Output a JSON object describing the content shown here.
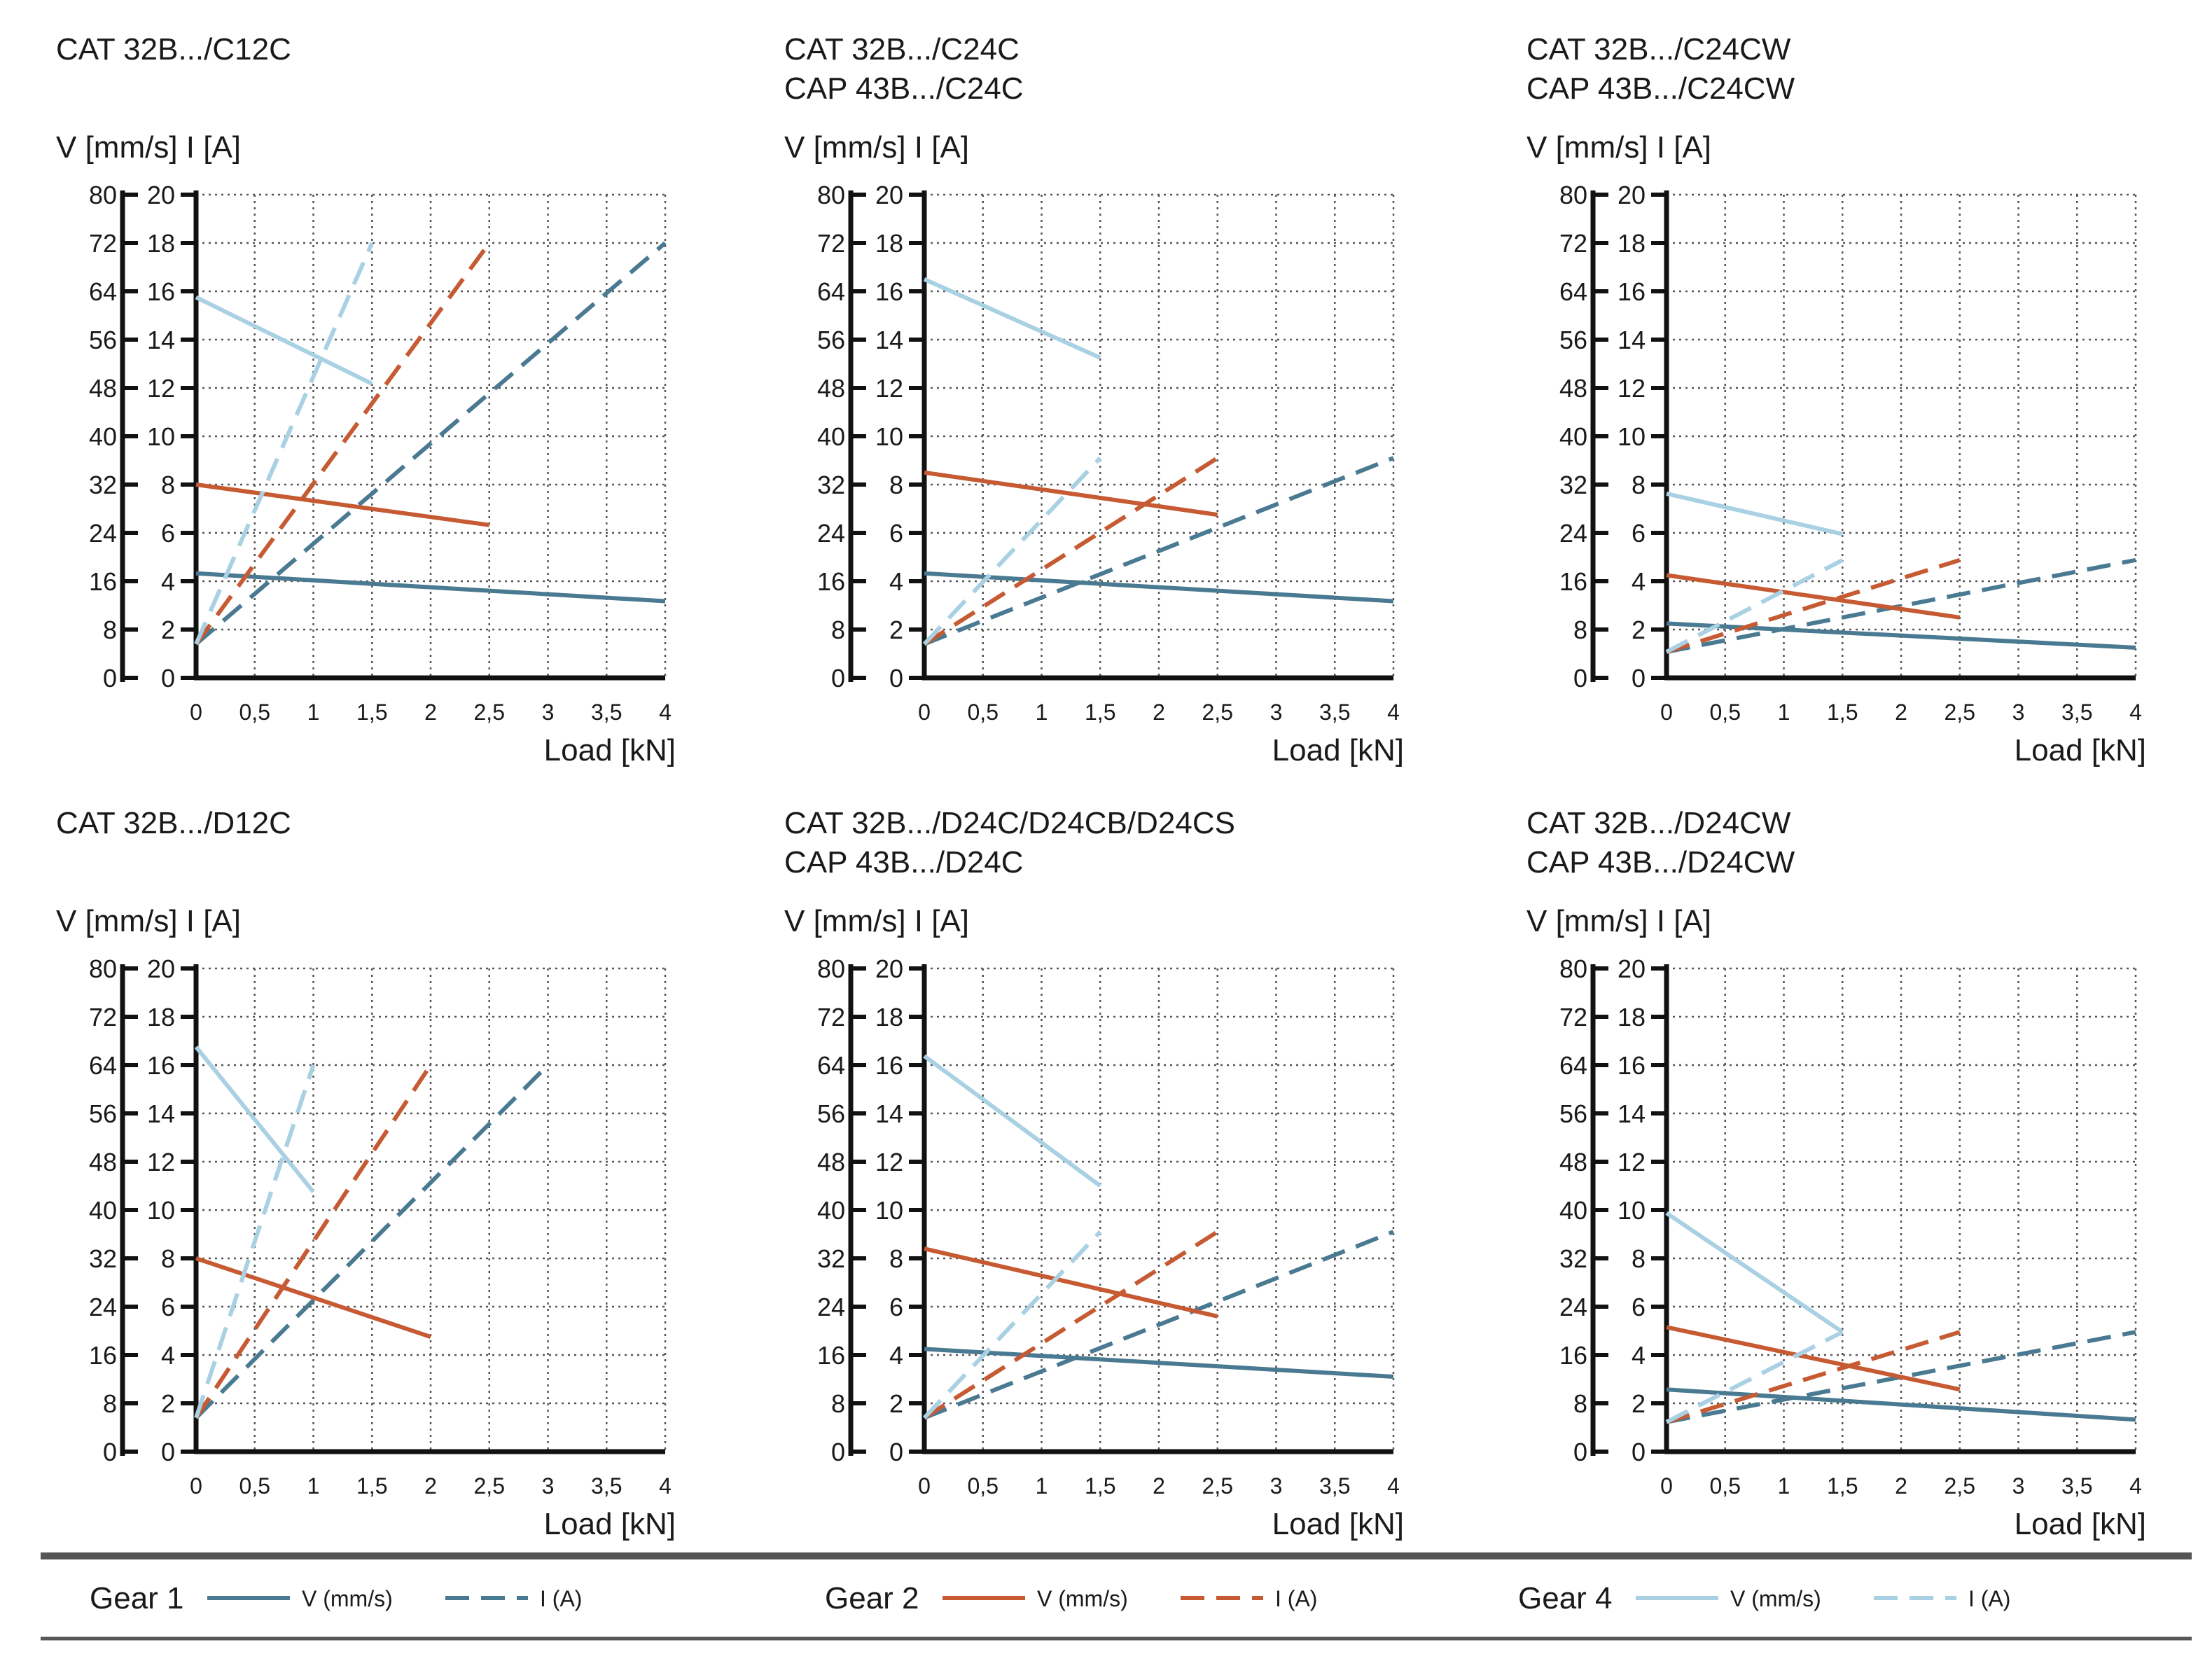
{
  "colors": {
    "gear1": "#4a7a92",
    "gear2": "#c65a33",
    "gear4": "#a9d1e3",
    "axis": "#111111",
    "grid": "#555555",
    "rule": "#555555"
  },
  "chart_data": [
    {
      "type": "line",
      "title_lines": [
        "CAT 32B.../C12C"
      ],
      "ylabel": "V [mm/s]  I [A]",
      "xlabel": "Load [kN]",
      "xlim": [
        0,
        4
      ],
      "x_ticks": [
        "0",
        "0,5",
        "1",
        "1,5",
        "2",
        "2,5",
        "3",
        "3,5",
        "4"
      ],
      "v_axis": {
        "label": "V [mm/s]",
        "range": [
          0,
          80
        ],
        "ticks": [
          "0",
          "8",
          "16",
          "24",
          "32",
          "40",
          "48",
          "56",
          "64",
          "72",
          "80"
        ]
      },
      "i_axis": {
        "label": "I [A]",
        "range": [
          0,
          20
        ],
        "ticks": [
          "0",
          "2",
          "4",
          "6",
          "8",
          "10",
          "12",
          "14",
          "16",
          "18",
          "20"
        ]
      },
      "series": [
        {
          "name": "Gear 1 V (mm/s)",
          "gear": "gear1",
          "style": "solid",
          "x": [
            0,
            4
          ],
          "y": [
            17.3,
            12.7
          ]
        },
        {
          "name": "Gear 1 I (A)",
          "gear": "gear1",
          "style": "dashed",
          "x": [
            0,
            4
          ],
          "y": [
            5.6,
            72
          ]
        },
        {
          "name": "Gear 2 V (mm/s)",
          "gear": "gear2",
          "style": "solid",
          "x": [
            0,
            2.5
          ],
          "y": [
            32,
            25.3
          ]
        },
        {
          "name": "Gear 2 I (A)",
          "gear": "gear2",
          "style": "dashed",
          "x": [
            0,
            2.5
          ],
          "y": [
            5.6,
            72
          ]
        },
        {
          "name": "Gear 4 V (mm/s)",
          "gear": "gear4",
          "style": "solid",
          "x": [
            0,
            1.5
          ],
          "y": [
            63,
            48.7
          ]
        },
        {
          "name": "Gear 4 I (A)",
          "gear": "gear4",
          "style": "dashed",
          "x": [
            0,
            1.5
          ],
          "y": [
            5.6,
            72
          ]
        }
      ]
    },
    {
      "type": "line",
      "title_lines": [
        "CAT 32B.../C24C",
        "CAP 43B.../C24C"
      ],
      "ylabel": "V [mm/s]  I [A]",
      "xlabel": "Load [kN]",
      "xlim": [
        0,
        4
      ],
      "x_ticks": [
        "0",
        "0,5",
        "1",
        "1,5",
        "2",
        "2,5",
        "3",
        "3,5",
        "4"
      ],
      "v_axis": {
        "label": "V [mm/s]",
        "range": [
          0,
          80
        ],
        "ticks": [
          "0",
          "8",
          "16",
          "24",
          "32",
          "40",
          "48",
          "56",
          "64",
          "72",
          "80"
        ]
      },
      "i_axis": {
        "label": "I [A]",
        "range": [
          0,
          20
        ],
        "ticks": [
          "0",
          "2",
          "4",
          "6",
          "8",
          "10",
          "12",
          "14",
          "16",
          "18",
          "20"
        ]
      },
      "series": [
        {
          "name": "Gear 1 V (mm/s)",
          "gear": "gear1",
          "style": "solid",
          "x": [
            0,
            4
          ],
          "y": [
            17.3,
            12.7
          ]
        },
        {
          "name": "Gear 1 I (A)",
          "gear": "gear1",
          "style": "dashed",
          "x": [
            0,
            4
          ],
          "y": [
            5.6,
            36.4
          ]
        },
        {
          "name": "Gear 2 V (mm/s)",
          "gear": "gear2",
          "style": "solid",
          "x": [
            0,
            2.5
          ],
          "y": [
            34,
            27
          ]
        },
        {
          "name": "Gear 2 I (A)",
          "gear": "gear2",
          "style": "dashed",
          "x": [
            0,
            2.5
          ],
          "y": [
            5.6,
            36.4
          ]
        },
        {
          "name": "Gear 4 V (mm/s)",
          "gear": "gear4",
          "style": "solid",
          "x": [
            0,
            1.5
          ],
          "y": [
            66,
            53
          ]
        },
        {
          "name": "Gear 4 I (A)",
          "gear": "gear4",
          "style": "dashed",
          "x": [
            0,
            1.5
          ],
          "y": [
            5.6,
            36.4
          ]
        }
      ]
    },
    {
      "type": "line",
      "title_lines": [
        "CAT 32B.../C24CW",
        "CAP 43B.../C24CW"
      ],
      "ylabel": "V [mm/s]  I [A]",
      "xlabel": "Load [kN]",
      "xlim": [
        0,
        4
      ],
      "x_ticks": [
        "0",
        "0,5",
        "1",
        "1,5",
        "2",
        "2,5",
        "3",
        "3,5",
        "4"
      ],
      "v_axis": {
        "label": "V [mm/s]",
        "range": [
          0,
          80
        ],
        "ticks": [
          "0",
          "8",
          "16",
          "24",
          "32",
          "40",
          "48",
          "56",
          "64",
          "72",
          "80"
        ]
      },
      "i_axis": {
        "label": "I [A]",
        "range": [
          0,
          20
        ],
        "ticks": [
          "0",
          "2",
          "4",
          "6",
          "8",
          "10",
          "12",
          "14",
          "16",
          "18",
          "20"
        ]
      },
      "series": [
        {
          "name": "Gear 1 V (mm/s)",
          "gear": "gear1",
          "style": "solid",
          "x": [
            0,
            4
          ],
          "y": [
            9,
            5
          ]
        },
        {
          "name": "Gear 1 I (A)",
          "gear": "gear1",
          "style": "dashed",
          "x": [
            0,
            4
          ],
          "y": [
            4.3,
            19.5
          ]
        },
        {
          "name": "Gear 2 V (mm/s)",
          "gear": "gear2",
          "style": "solid",
          "x": [
            0,
            2.5
          ],
          "y": [
            17,
            10
          ]
        },
        {
          "name": "Gear 2 I (A)",
          "gear": "gear2",
          "style": "dashed",
          "x": [
            0,
            2.5
          ],
          "y": [
            4.3,
            19.5
          ]
        },
        {
          "name": "Gear 4 V (mm/s)",
          "gear": "gear4",
          "style": "solid",
          "x": [
            0,
            1.5
          ],
          "y": [
            30.5,
            23.8
          ]
        },
        {
          "name": "Gear 4 I (A)",
          "gear": "gear4",
          "style": "dashed",
          "x": [
            0,
            1.5
          ],
          "y": [
            4.3,
            19.5
          ]
        }
      ]
    },
    {
      "type": "line",
      "title_lines": [
        "CAT 32B.../D12C"
      ],
      "ylabel": "V [mm/s]  I [A]",
      "xlabel": "Load [kN]",
      "xlim": [
        0,
        4
      ],
      "x_ticks": [
        "0",
        "0,5",
        "1",
        "1,5",
        "2",
        "2,5",
        "3",
        "3,5",
        "4"
      ],
      "v_axis": {
        "label": "V [mm/s]",
        "range": [
          0,
          80
        ],
        "ticks": [
          "0",
          "8",
          "16",
          "24",
          "32",
          "40",
          "48",
          "56",
          "64",
          "72",
          "80"
        ]
      },
      "i_axis": {
        "label": "I [A]",
        "range": [
          0,
          20
        ],
        "ticks": [
          "0",
          "2",
          "4",
          "6",
          "8",
          "10",
          "12",
          "14",
          "16",
          "18",
          "20"
        ]
      },
      "series": [
        {
          "name": "Gear 1 V (mm/s)",
          "gear": "gear1",
          "style": "solid",
          "x": [
            0,
            3
          ],
          "y": [
            null,
            null
          ]
        },
        {
          "name": "Gear 1 I (A)",
          "gear": "gear1",
          "style": "dashed",
          "x": [
            0,
            3
          ],
          "y": [
            5.6,
            64
          ]
        },
        {
          "name": "Gear 2 V (mm/s)",
          "gear": "gear2",
          "style": "solid",
          "x": [
            0,
            2
          ],
          "y": [
            32,
            19
          ]
        },
        {
          "name": "Gear 2 I (A)",
          "gear": "gear2",
          "style": "dashed",
          "x": [
            0,
            2
          ],
          "y": [
            5.6,
            64
          ]
        },
        {
          "name": "Gear 4 V (mm/s)",
          "gear": "gear4",
          "style": "solid",
          "x": [
            0,
            1
          ],
          "y": [
            67,
            43
          ]
        },
        {
          "name": "Gear 4 I (A)",
          "gear": "gear4",
          "style": "dashed",
          "x": [
            0,
            1
          ],
          "y": [
            5.6,
            64
          ]
        }
      ]
    },
    {
      "type": "line",
      "title_lines": [
        "CAT 32B.../D24C/D24CB/D24CS",
        "CAP 43B.../D24C"
      ],
      "ylabel": "V [mm/s]  I [A]",
      "xlabel": "Load [kN]",
      "xlim": [
        0,
        4
      ],
      "x_ticks": [
        "0",
        "0,5",
        "1",
        "1,5",
        "2",
        "2,5",
        "3",
        "3,5",
        "4"
      ],
      "v_axis": {
        "label": "V [mm/s]",
        "range": [
          0,
          80
        ],
        "ticks": [
          "0",
          "8",
          "16",
          "24",
          "32",
          "40",
          "48",
          "56",
          "64",
          "72",
          "80"
        ]
      },
      "i_axis": {
        "label": "I [A]",
        "range": [
          0,
          20
        ],
        "ticks": [
          "0",
          "2",
          "4",
          "6",
          "8",
          "10",
          "12",
          "14",
          "16",
          "18",
          "20"
        ]
      },
      "series": [
        {
          "name": "Gear 1 V (mm/s)",
          "gear": "gear1",
          "style": "solid",
          "x": [
            0,
            4
          ],
          "y": [
            17,
            12.4
          ]
        },
        {
          "name": "Gear 1 I (A)",
          "gear": "gear1",
          "style": "dashed",
          "x": [
            0,
            4
          ],
          "y": [
            5.6,
            36.4
          ]
        },
        {
          "name": "Gear 2 V (mm/s)",
          "gear": "gear2",
          "style": "solid",
          "x": [
            0,
            2.5
          ],
          "y": [
            33.6,
            22.4
          ]
        },
        {
          "name": "Gear 2 I (A)",
          "gear": "gear2",
          "style": "dashed",
          "x": [
            0,
            2.5
          ],
          "y": [
            5.6,
            36.4
          ]
        },
        {
          "name": "Gear 4 V (mm/s)",
          "gear": "gear4",
          "style": "solid",
          "x": [
            0,
            1.5
          ],
          "y": [
            65.5,
            44
          ]
        },
        {
          "name": "Gear 4 I (A)",
          "gear": "gear4",
          "style": "dashed",
          "x": [
            0,
            1.5
          ],
          "y": [
            5.6,
            36.4
          ]
        }
      ]
    },
    {
      "type": "line",
      "title_lines": [
        "CAT 32B.../D24CW",
        "CAP 43B.../D24CW"
      ],
      "ylabel": "V [mm/s]  I [A]",
      "xlabel": "Load [kN]",
      "xlim": [
        0,
        4
      ],
      "x_ticks": [
        "0",
        "0,5",
        "1",
        "1,5",
        "2",
        "2,5",
        "3",
        "3,5",
        "4"
      ],
      "v_axis": {
        "label": "V [mm/s]",
        "range": [
          0,
          80
        ],
        "ticks": [
          "0",
          "8",
          "16",
          "24",
          "32",
          "40",
          "48",
          "56",
          "64",
          "72",
          "80"
        ]
      },
      "i_axis": {
        "label": "I [A]",
        "range": [
          0,
          20
        ],
        "ticks": [
          "0",
          "2",
          "4",
          "6",
          "8",
          "10",
          "12",
          "14",
          "16",
          "18",
          "20"
        ]
      },
      "series": [
        {
          "name": "Gear 1 V (mm/s)",
          "gear": "gear1",
          "style": "solid",
          "x": [
            0,
            4
          ],
          "y": [
            10.3,
            5.3
          ]
        },
        {
          "name": "Gear 1 I (A)",
          "gear": "gear1",
          "style": "dashed",
          "x": [
            0,
            4
          ],
          "y": [
            4.9,
            19.8
          ]
        },
        {
          "name": "Gear 2 V (mm/s)",
          "gear": "gear2",
          "style": "solid",
          "x": [
            0,
            2.5
          ],
          "y": [
            20.6,
            10.3
          ]
        },
        {
          "name": "Gear 2 I (A)",
          "gear": "gear2",
          "style": "dashed",
          "x": [
            0,
            2.5
          ],
          "y": [
            4.9,
            19.8
          ]
        },
        {
          "name": "Gear 4 V (mm/s)",
          "gear": "gear4",
          "style": "solid",
          "x": [
            0,
            1.5
          ],
          "y": [
            39.5,
            19.8
          ]
        },
        {
          "name": "Gear 4 I (A)",
          "gear": "gear4",
          "style": "dashed",
          "x": [
            0,
            1.5
          ],
          "y": [
            4.9,
            19.8
          ]
        }
      ]
    }
  ],
  "legend": {
    "groups": [
      {
        "title": "Gear 1",
        "gear": "gear1",
        "solid_label": "V (mm/s)",
        "dashed_label": "I (A)"
      },
      {
        "title": "Gear 2",
        "gear": "gear2",
        "solid_label": "V (mm/s)",
        "dashed_label": "I (A)"
      },
      {
        "title": "Gear 4",
        "gear": "gear4",
        "solid_label": "V (mm/s)",
        "dashed_label": "I (A)"
      }
    ]
  }
}
